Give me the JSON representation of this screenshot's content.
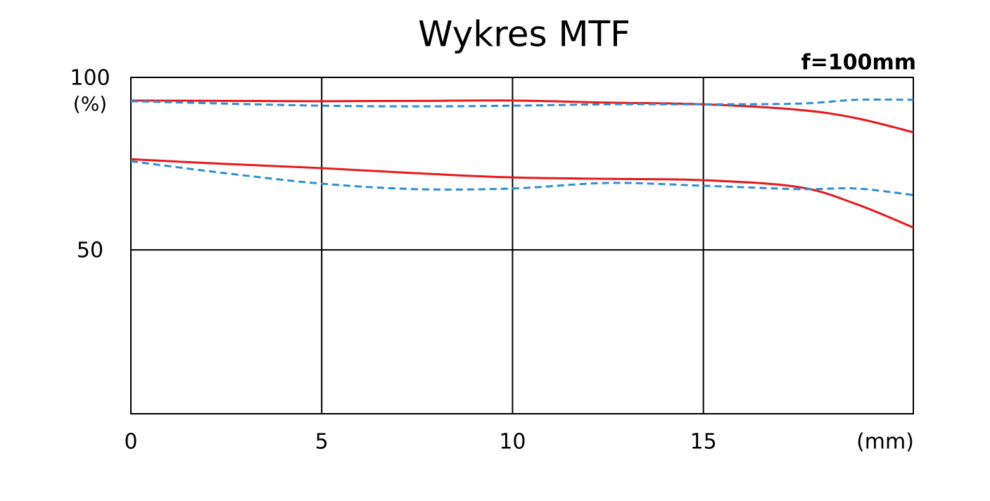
{
  "chart_data": {
    "type": "line",
    "title": "Wykres MTF",
    "subtitle": "f=100mm",
    "x_unit": "(mm)",
    "y_unit": "(%)",
    "x": [
      0,
      2.5,
      5,
      7.5,
      10,
      12.5,
      15,
      17.5,
      19,
      20.5
    ],
    "series": [
      {
        "color": "#e8191c",
        "dashed": false,
        "values": [
          93.3,
          93.2,
          93.1,
          93.2,
          93.3,
          92.7,
          92.2,
          90.6,
          88.2,
          84.1
        ]
      },
      {
        "color": "#2f8fd6",
        "dashed": true,
        "values": [
          93.1,
          92.4,
          91.8,
          91.6,
          91.8,
          92.2,
          92.2,
          92.4,
          93.5,
          93.5
        ]
      },
      {
        "color": "#e8191c",
        "dashed": false,
        "values": [
          76.3,
          74.9,
          73.7,
          72.2,
          71.0,
          70.6,
          70.2,
          68.2,
          63.3,
          56.5
        ]
      },
      {
        "color": "#2f8fd6",
        "dashed": true,
        "values": [
          75.7,
          72.2,
          69.2,
          67.6,
          67.8,
          69.4,
          68.6,
          67.6,
          67.8,
          65.9
        ]
      }
    ],
    "xlim": [
      0,
      20.5
    ],
    "ylim": [
      2.5,
      100
    ],
    "xticks": [
      0,
      5,
      10,
      15
    ],
    "yticks": [
      50,
      100
    ],
    "grid": true
  }
}
